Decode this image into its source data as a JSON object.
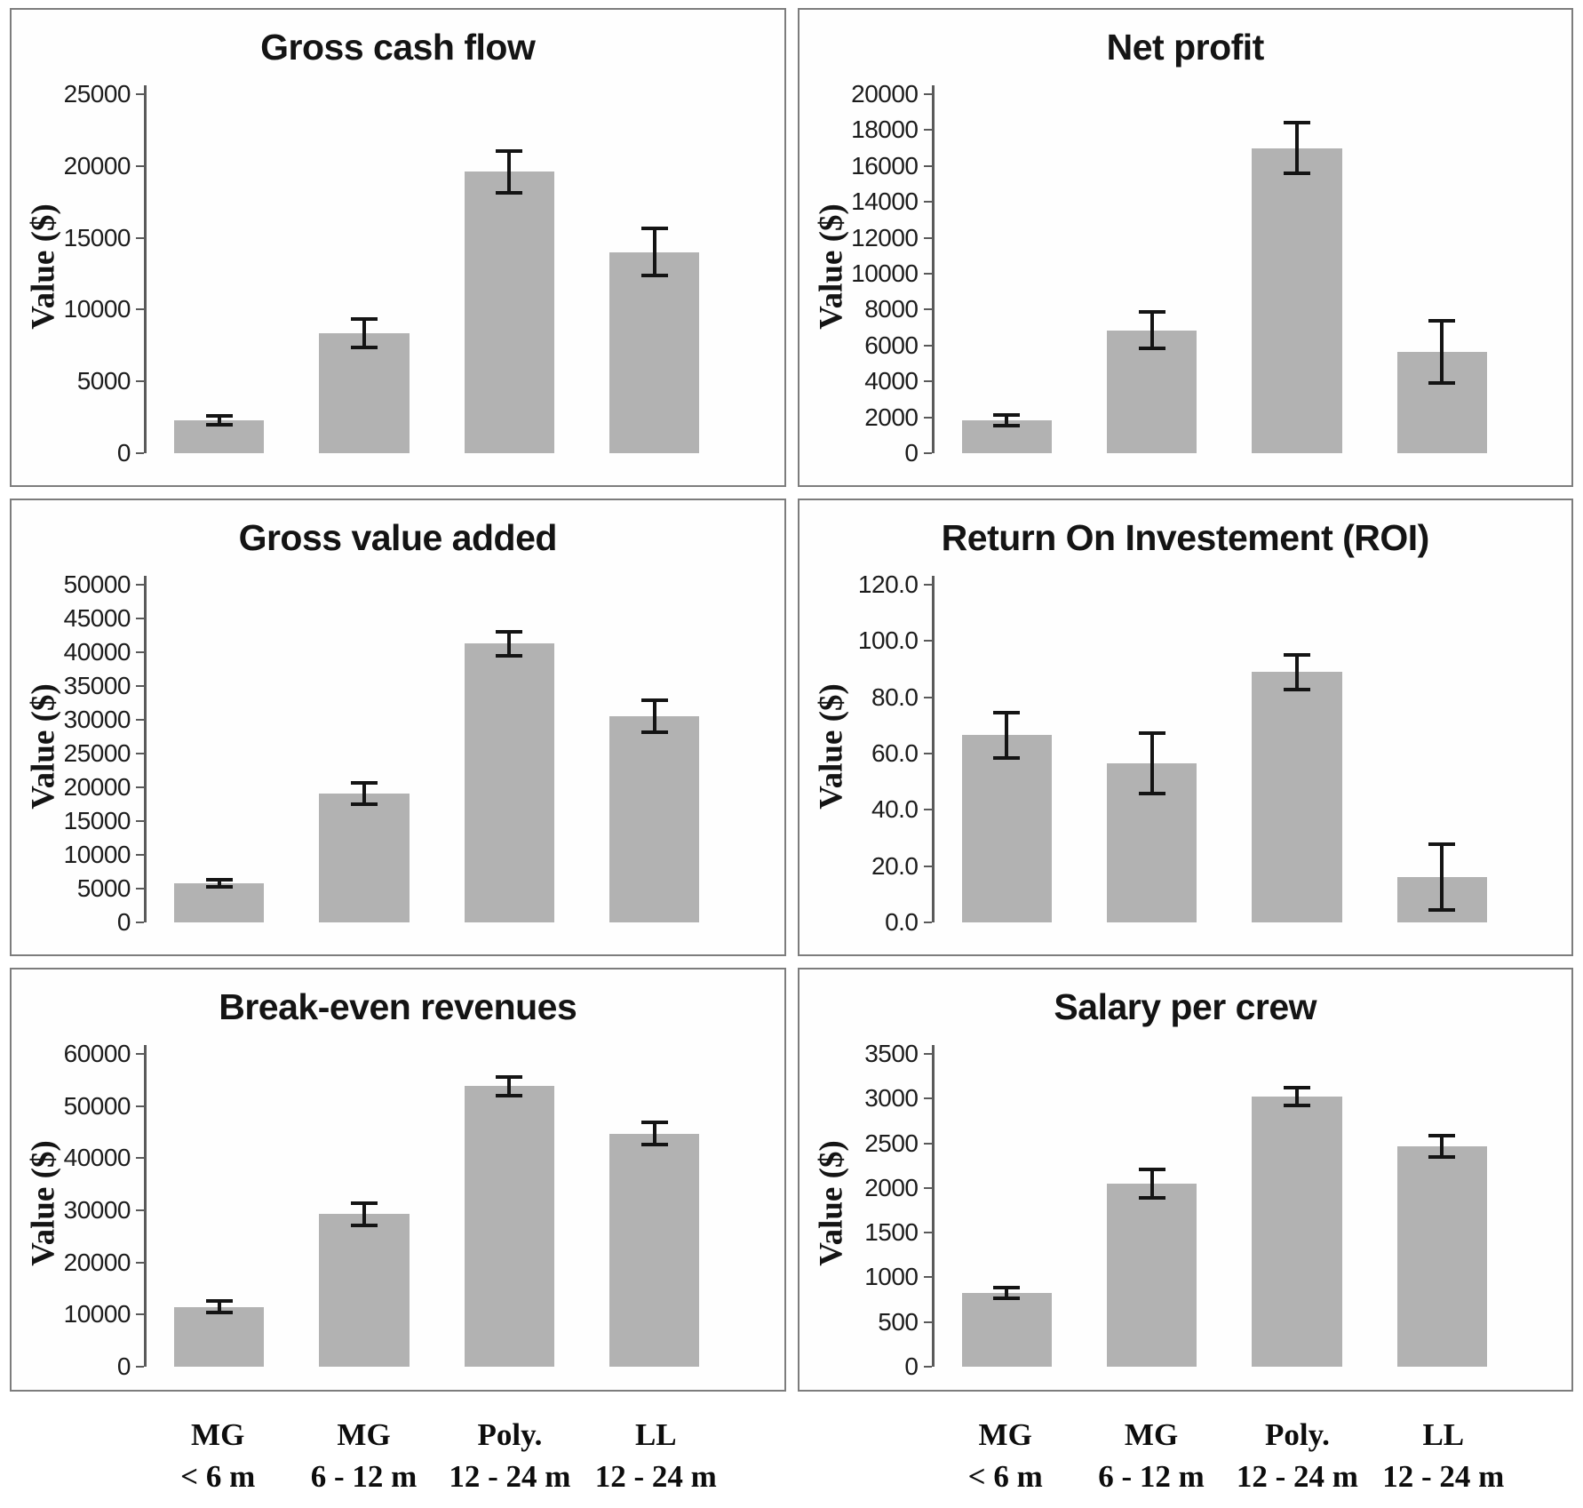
{
  "style": {
    "bar_color": "#b2b2b2",
    "error_color": "#141414",
    "axis_color": "#5a5a5a",
    "panel_border": "#7d7d7d",
    "background": "#fefefe"
  },
  "categories": [
    {
      "line1": "MG",
      "line2": "< 6 m"
    },
    {
      "line1": "MG",
      "line2": "6 - 12 m"
    },
    {
      "line1": "Poly.",
      "line2": "12 - 24 m"
    },
    {
      "line1": "LL",
      "line2": "12 - 24 m"
    }
  ],
  "chart_data": [
    {
      "type": "bar",
      "title": "Gross cash flow",
      "ylabel": "Value ($)",
      "categories": [
        "MG < 6 m",
        "MG 6 - 12 m",
        "Poly. 12 - 24 m",
        "LL 12 - 24 m"
      ],
      "values": [
        2300,
        8350,
        19600,
        14000
      ],
      "errors": [
        350,
        1050,
        1500,
        1700
      ],
      "ylim": [
        0,
        25000
      ],
      "ytick_step": 5000,
      "decimals": 0,
      "grid": false,
      "legend": "none"
    },
    {
      "type": "bar",
      "title": "Net profit",
      "ylabel": "Value ($)",
      "categories": [
        "MG < 6 m",
        "MG 6 - 12 m",
        "Poly. 12 - 24 m",
        "LL 12 - 24 m"
      ],
      "values": [
        1850,
        6850,
        17000,
        5650
      ],
      "errors": [
        350,
        1050,
        1450,
        1800
      ],
      "ylim": [
        0,
        20000
      ],
      "ytick_step": 2000,
      "decimals": 0,
      "grid": false,
      "legend": "none"
    },
    {
      "type": "bar",
      "title": "Gross value added",
      "ylabel": "Value ($)",
      "categories": [
        "MG < 6 m",
        "MG 6 - 12 m",
        "Poly. 12 - 24 m",
        "LL 12 - 24 m"
      ],
      "values": [
        5800,
        19100,
        41300,
        30600
      ],
      "errors": [
        700,
        1700,
        1900,
        2500
      ],
      "ylim": [
        0,
        50000
      ],
      "ytick_step": 5000,
      "decimals": 0,
      "grid": false,
      "legend": "none"
    },
    {
      "type": "bar",
      "title": "Return On Investement (ROI)",
      "ylabel": "Value ($)",
      "categories": [
        "MG < 6 m",
        "MG 6 - 12 m",
        "Poly. 12 - 24 m",
        "LL 12 - 24 m"
      ],
      "values": [
        66.5,
        56.5,
        89.0,
        16.0
      ],
      "errors": [
        8.5,
        11.0,
        6.5,
        12.0
      ],
      "ylim": [
        0,
        120
      ],
      "ytick_step": 20,
      "decimals": 1,
      "grid": false,
      "legend": "none"
    },
    {
      "type": "bar",
      "title": "Break-even revenues",
      "ylabel": "Value ($)",
      "categories": [
        "MG < 6 m",
        "MG 6 - 12 m",
        "Poly. 12 - 24 m",
        "LL 12 - 24 m"
      ],
      "values": [
        11500,
        29300,
        53800,
        44700
      ],
      "errors": [
        1300,
        2300,
        2000,
        2300
      ],
      "ylim": [
        0,
        60000
      ],
      "ytick_step": 10000,
      "decimals": 0,
      "grid": false,
      "legend": "none"
    },
    {
      "type": "bar",
      "title": "Salary per crew",
      "ylabel": "Value ($)",
      "categories": [
        "MG < 6 m",
        "MG 6 - 12 m",
        "Poly. 12 - 24 m",
        "LL 12 - 24 m"
      ],
      "values": [
        830,
        2050,
        3020,
        2470
      ],
      "errors": [
        70,
        170,
        110,
        130
      ],
      "ylim": [
        0,
        3500
      ],
      "ytick_step": 500,
      "decimals": 0,
      "grid": false,
      "legend": "none"
    }
  ]
}
